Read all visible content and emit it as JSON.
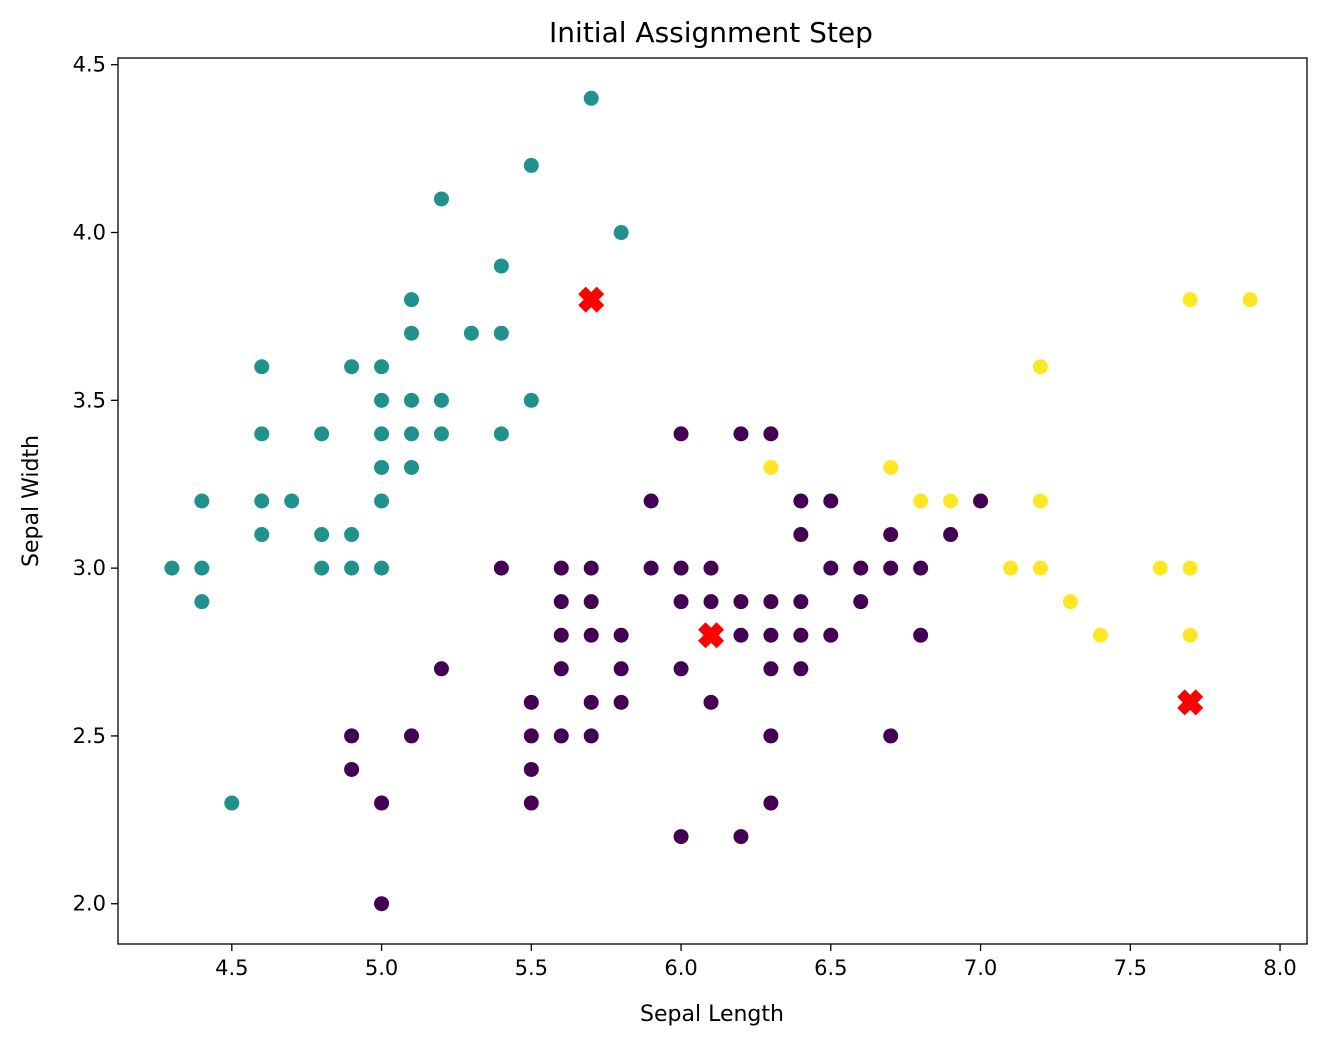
{
  "chart_data": {
    "type": "scatter",
    "title": "Initial Assignment Step",
    "xlabel": "Sepal Length",
    "ylabel": "Sepal Width",
    "xlim": [
      4.12,
      8.09
    ],
    "ylim": [
      1.88,
      4.52
    ],
    "xticks": [
      4.5,
      5.0,
      5.5,
      6.0,
      6.5,
      7.0,
      7.5,
      8.0
    ],
    "xtick_labels": [
      "4.5",
      "5.0",
      "5.5",
      "6.0",
      "6.5",
      "7.0",
      "7.5",
      "8.0"
    ],
    "yticks": [
      2.0,
      2.5,
      3.0,
      3.5,
      4.0,
      4.5
    ],
    "ytick_labels": [
      "2.0",
      "2.5",
      "3.0",
      "3.5",
      "4.0",
      "4.5"
    ],
    "grid": false,
    "colors": {
      "cluster_0": "#440154",
      "cluster_1": "#21918c",
      "cluster_2": "#fde725",
      "centroid": "#ff0000"
    },
    "series": [
      {
        "cluster": 0,
        "color": "#440154",
        "points": [
          [
            6.0,
            3.4
          ],
          [
            6.2,
            3.4
          ],
          [
            6.3,
            3.4
          ],
          [
            5.9,
            3.2
          ],
          [
            6.4,
            3.2
          ],
          [
            6.5,
            3.2
          ],
          [
            7.0,
            3.2
          ],
          [
            6.4,
            3.1
          ],
          [
            6.7,
            3.1
          ],
          [
            6.9,
            3.1
          ],
          [
            5.4,
            3.0
          ],
          [
            5.6,
            3.0
          ],
          [
            5.7,
            3.0
          ],
          [
            5.9,
            3.0
          ],
          [
            6.0,
            3.0
          ],
          [
            6.1,
            3.0
          ],
          [
            6.5,
            3.0
          ],
          [
            6.6,
            3.0
          ],
          [
            6.7,
            3.0
          ],
          [
            6.8,
            3.0
          ],
          [
            5.6,
            2.9
          ],
          [
            5.7,
            2.9
          ],
          [
            6.0,
            2.9
          ],
          [
            6.1,
            2.9
          ],
          [
            6.2,
            2.9
          ],
          [
            6.3,
            2.9
          ],
          [
            6.4,
            2.9
          ],
          [
            6.6,
            2.9
          ],
          [
            5.6,
            2.8
          ],
          [
            5.7,
            2.8
          ],
          [
            5.8,
            2.8
          ],
          [
            6.2,
            2.8
          ],
          [
            6.3,
            2.8
          ],
          [
            6.4,
            2.8
          ],
          [
            6.5,
            2.8
          ],
          [
            6.8,
            2.8
          ],
          [
            5.2,
            2.7
          ],
          [
            5.6,
            2.7
          ],
          [
            5.8,
            2.7
          ],
          [
            6.0,
            2.7
          ],
          [
            6.3,
            2.7
          ],
          [
            6.4,
            2.7
          ],
          [
            5.5,
            2.6
          ],
          [
            5.7,
            2.6
          ],
          [
            5.8,
            2.6
          ],
          [
            6.1,
            2.6
          ],
          [
            4.9,
            2.5
          ],
          [
            5.1,
            2.5
          ],
          [
            5.5,
            2.5
          ],
          [
            5.6,
            2.5
          ],
          [
            5.7,
            2.5
          ],
          [
            6.3,
            2.5
          ],
          [
            6.7,
            2.5
          ],
          [
            4.9,
            2.4
          ],
          [
            5.5,
            2.4
          ],
          [
            5.0,
            2.3
          ],
          [
            5.5,
            2.3
          ],
          [
            6.3,
            2.3
          ],
          [
            6.0,
            2.2
          ],
          [
            6.2,
            2.2
          ],
          [
            5.0,
            2.0
          ]
        ]
      },
      {
        "cluster": 1,
        "color": "#21918c",
        "points": [
          [
            5.7,
            4.4
          ],
          [
            5.5,
            4.2
          ],
          [
            5.2,
            4.1
          ],
          [
            5.8,
            4.0
          ],
          [
            5.4,
            3.9
          ],
          [
            5.1,
            3.8
          ],
          [
            5.1,
            3.7
          ],
          [
            5.3,
            3.7
          ],
          [
            5.4,
            3.7
          ],
          [
            4.6,
            3.6
          ],
          [
            4.9,
            3.6
          ],
          [
            5.0,
            3.6
          ],
          [
            5.0,
            3.5
          ],
          [
            5.1,
            3.5
          ],
          [
            5.2,
            3.5
          ],
          [
            5.5,
            3.5
          ],
          [
            4.6,
            3.4
          ],
          [
            4.8,
            3.4
          ],
          [
            5.0,
            3.4
          ],
          [
            5.1,
            3.4
          ],
          [
            5.2,
            3.4
          ],
          [
            5.4,
            3.4
          ],
          [
            5.0,
            3.3
          ],
          [
            5.1,
            3.3
          ],
          [
            4.4,
            3.2
          ],
          [
            4.6,
            3.2
          ],
          [
            4.7,
            3.2
          ],
          [
            5.0,
            3.2
          ],
          [
            4.6,
            3.1
          ],
          [
            4.8,
            3.1
          ],
          [
            4.9,
            3.1
          ],
          [
            4.3,
            3.0
          ],
          [
            4.4,
            3.0
          ],
          [
            4.8,
            3.0
          ],
          [
            4.9,
            3.0
          ],
          [
            5.0,
            3.0
          ],
          [
            4.4,
            2.9
          ],
          [
            4.5,
            2.3
          ]
        ]
      },
      {
        "cluster": 2,
        "color": "#fde725",
        "points": [
          [
            7.7,
            3.8
          ],
          [
            7.9,
            3.8
          ],
          [
            7.2,
            3.6
          ],
          [
            6.3,
            3.3
          ],
          [
            6.7,
            3.3
          ],
          [
            6.8,
            3.2
          ],
          [
            6.9,
            3.2
          ],
          [
            7.2,
            3.2
          ],
          [
            7.1,
            3.0
          ],
          [
            7.2,
            3.0
          ],
          [
            7.6,
            3.0
          ],
          [
            7.7,
            3.0
          ],
          [
            7.3,
            2.9
          ],
          [
            7.4,
            2.8
          ],
          [
            7.7,
            2.8
          ]
        ]
      }
    ],
    "centroids": [
      [
        5.7,
        3.8
      ],
      [
        6.1,
        2.8
      ],
      [
        7.7,
        2.6
      ]
    ]
  }
}
